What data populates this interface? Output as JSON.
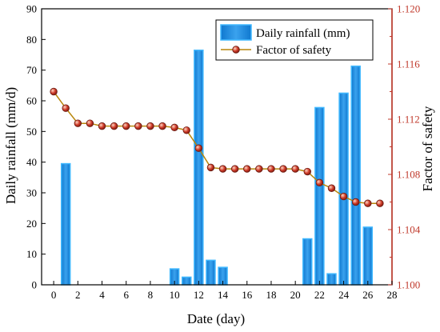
{
  "chart_data": {
    "type": "bar",
    "xlabel": "Date (day)",
    "ylabel_left": "Daily rainfall (mm/d)",
    "ylabel_right": "Factor of safety",
    "xlim": [
      -1,
      28
    ],
    "ylim_left": [
      0,
      90
    ],
    "ylim_right": [
      1.1,
      1.12
    ],
    "x_ticks": [
      0,
      2,
      4,
      6,
      8,
      10,
      12,
      14,
      16,
      18,
      20,
      22,
      24,
      26,
      28
    ],
    "y_left_ticks": [
      0,
      10,
      20,
      30,
      40,
      50,
      60,
      70,
      80,
      90
    ],
    "y_right_ticks": [
      "1.100",
      "1.104",
      "1.108",
      "1.112",
      "1.116",
      "1.120"
    ],
    "legend_position": "top-right",
    "grid": false,
    "series": [
      {
        "name": "Daily rainfall (mm)",
        "type": "bar",
        "axis": "left",
        "color": "#1f8fe0",
        "x": [
          1,
          10,
          11,
          12,
          13,
          14,
          21,
          22,
          23,
          24,
          25,
          26
        ],
        "values": [
          39.5,
          5.2,
          2.5,
          76.5,
          8.0,
          5.7,
          15.0,
          57.8,
          3.6,
          62.5,
          71.3,
          18.8
        ]
      },
      {
        "name": "Factor of safety",
        "type": "line",
        "axis": "right",
        "color": "#c0392b",
        "x": [
          0,
          1,
          2,
          3,
          4,
          5,
          6,
          7,
          8,
          9,
          10,
          11,
          12,
          13,
          14,
          15,
          16,
          17,
          18,
          19,
          20,
          21,
          22,
          23,
          24,
          25,
          26,
          27
        ],
        "values": [
          1.114,
          1.1128,
          1.1117,
          1.1117,
          1.1115,
          1.1115,
          1.1115,
          1.1115,
          1.1115,
          1.1115,
          1.1114,
          1.1112,
          1.1099,
          1.1085,
          1.1084,
          1.1084,
          1.1084,
          1.1084,
          1.1084,
          1.1084,
          1.1084,
          1.1082,
          1.1074,
          1.107,
          1.1064,
          1.106,
          1.1059,
          1.1059
        ]
      }
    ]
  }
}
